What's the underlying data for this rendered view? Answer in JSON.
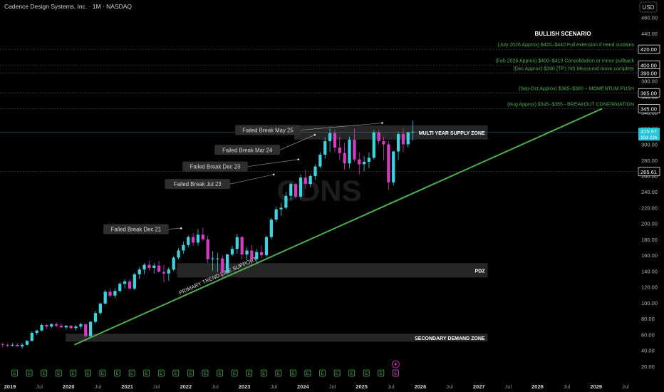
{
  "header": {
    "symbol_title": "Cadence Design Systems, Inc. · 1M · NASDAQ",
    "currency": "USD",
    "watermark": "CDNS"
  },
  "colors": {
    "background": "#000000",
    "up_candle": "#3ed3e0",
    "down_candle": "#d63bc2",
    "trendline": "#4caf50",
    "annotation_text": "#4caf50",
    "zone_fill": "#2a2a2a",
    "label_bg": "#2e2e2e",
    "level_line": "#5a5a5a",
    "current_price_bg": "#26c6da"
  },
  "chart_data": {
    "type": "candlestick",
    "y_axis": {
      "min": 0,
      "max": 475,
      "tick_labels": [
        "20.00",
        "40.00",
        "60.00",
        "80.00",
        "100.00",
        "120.00",
        "140.00",
        "160.00",
        "180.00",
        "200.00",
        "220.00",
        "240.00",
        "260.00",
        "280.00",
        "300.00",
        "320.00",
        "340.00",
        "360.00",
        "380.00",
        "400.00",
        "420.00",
        "440.00",
        "460.00"
      ],
      "tick_values": [
        20,
        40,
        60,
        80,
        100,
        120,
        140,
        160,
        180,
        200,
        220,
        240,
        260,
        280,
        300,
        320,
        340,
        360,
        380,
        400,
        420,
        440,
        460
      ]
    },
    "x_axis": {
      "start": "2018-11",
      "end": "2029-09",
      "ticks": [
        {
          "label": "2019",
          "t": 2019.0
        },
        {
          "label": "Jul",
          "t": 2019.5
        },
        {
          "label": "2020",
          "t": 2020.0
        },
        {
          "label": "Jul",
          "t": 2020.5
        },
        {
          "label": "2021",
          "t": 2021.0
        },
        {
          "label": "Jul",
          "t": 2021.5
        },
        {
          "label": "2022",
          "t": 2022.0
        },
        {
          "label": "Jul",
          "t": 2022.5
        },
        {
          "label": "2023",
          "t": 2023.0
        },
        {
          "label": "Jul",
          "t": 2023.5
        },
        {
          "label": "2024",
          "t": 2024.0
        },
        {
          "label": "Jul",
          "t": 2024.5
        },
        {
          "label": "2025",
          "t": 2025.0
        },
        {
          "label": "Jul",
          "t": 2025.5
        },
        {
          "label": "2026",
          "t": 2026.0
        },
        {
          "label": "Jul",
          "t": 2026.5
        },
        {
          "label": "2027",
          "t": 2027.0
        },
        {
          "label": "Jul",
          "t": 2027.5
        },
        {
          "label": "2028",
          "t": 2028.0
        },
        {
          "label": "Jul",
          "t": 2028.5
        },
        {
          "label": "2029",
          "t": 2029.0
        },
        {
          "label": "Jul",
          "t": 2029.5
        }
      ]
    },
    "candles": {
      "start_date": "2018-11",
      "ohlc": [
        [
          48,
          49,
          44,
          47
        ],
        [
          47,
          48,
          44,
          46
        ],
        [
          46,
          49,
          45,
          47
        ],
        [
          47,
          49,
          45,
          45
        ],
        [
          45,
          49,
          42,
          47
        ],
        [
          47,
          53,
          46,
          52
        ],
        [
          52,
          64,
          51,
          62
        ],
        [
          62,
          66,
          59,
          65
        ],
        [
          65,
          74,
          64,
          72
        ],
        [
          72,
          73,
          67,
          70
        ],
        [
          70,
          74,
          68,
          73
        ],
        [
          73,
          75,
          69,
          71
        ],
        [
          71,
          74,
          68,
          69
        ],
        [
          69,
          72,
          66,
          71
        ],
        [
          71,
          72,
          67,
          68
        ],
        [
          68,
          72,
          65,
          70
        ],
        [
          70,
          75,
          67,
          73
        ],
        [
          73,
          72,
          56,
          58
        ],
        [
          58,
          77,
          57,
          76
        ],
        [
          76,
          90,
          74,
          87
        ],
        [
          87,
          100,
          85,
          99
        ],
        [
          99,
          116,
          98,
          114
        ],
        [
          114,
          118,
          107,
          109
        ],
        [
          109,
          118,
          106,
          115
        ],
        [
          115,
          126,
          113,
          124
        ],
        [
          124,
          130,
          118,
          127
        ],
        [
          127,
          130,
          117,
          118
        ],
        [
          118,
          138,
          116,
          136
        ],
        [
          136,
          145,
          130,
          142
        ],
        [
          142,
          150,
          136,
          148
        ],
        [
          148,
          153,
          141,
          144
        ],
        [
          144,
          150,
          137,
          147
        ],
        [
          147,
          153,
          142,
          139
        ],
        [
          139,
          148,
          126,
          137
        ],
        [
          137,
          145,
          128,
          142
        ],
        [
          142,
          159,
          140,
          157
        ],
        [
          157,
          169,
          155,
          166
        ],
        [
          166,
          177,
          162,
          173
        ],
        [
          173,
          185,
          170,
          183
        ],
        [
          183,
          188,
          172,
          176
        ],
        [
          176,
          193,
          172,
          186
        ],
        [
          186,
          195,
          178,
          180
        ],
        [
          180,
          185,
          150,
          155
        ],
        [
          155,
          165,
          140,
          156
        ],
        [
          156,
          163,
          139,
          156
        ],
        [
          156,
          160,
          132,
          138
        ],
        [
          138,
          162,
          136,
          161
        ],
        [
          161,
          172,
          159,
          168
        ],
        [
          168,
          187,
          162,
          183
        ],
        [
          183,
          184,
          155,
          161
        ],
        [
          161,
          170,
          154,
          166
        ],
        [
          166,
          173,
          148,
          155
        ],
        [
          155,
          168,
          150,
          164
        ],
        [
          164,
          172,
          156,
          160
        ],
        [
          160,
          185,
          158,
          183
        ],
        [
          183,
          207,
          180,
          205
        ],
        [
          205,
          221,
          202,
          218
        ],
        [
          218,
          226,
          210,
          220
        ],
        [
          220,
          240,
          218,
          235
        ],
        [
          235,
          252,
          230,
          250
        ],
        [
          250,
          250,
          232,
          234
        ],
        [
          234,
          262,
          231,
          258
        ],
        [
          258,
          268,
          244,
          250
        ],
        [
          250,
          262,
          246,
          260
        ],
        [
          260,
          275,
          255,
          272
        ],
        [
          272,
          290,
          270,
          287
        ],
        [
          287,
          309,
          282,
          304
        ],
        [
          304,
          320,
          290,
          314
        ],
        [
          314,
          318,
          290,
          296
        ],
        [
          296,
          310,
          280,
          289
        ],
        [
          289,
          302,
          268,
          276
        ],
        [
          276,
          310,
          270,
          306
        ],
        [
          306,
          320,
          278,
          281
        ],
        [
          281,
          290,
          262,
          275
        ],
        [
          275,
          285,
          266,
          278
        ],
        [
          278,
          290,
          270,
          283
        ],
        [
          283,
          318,
          281,
          315
        ],
        [
          315,
          318,
          300,
          304
        ],
        [
          304,
          310,
          280,
          300
        ],
        [
          300,
          304,
          243,
          252
        ],
        [
          252,
          292,
          248,
          291
        ],
        [
          291,
          316,
          280,
          313
        ],
        [
          313,
          320,
          290,
          300
        ],
        [
          300,
          316,
          296,
          315
        ],
        [
          315,
          330,
          305,
          316
        ]
      ]
    },
    "current_price": {
      "value": "315.57",
      "label": "315.57",
      "countdown": "10d 23h"
    },
    "level_labels": [
      {
        "value": 420,
        "label": "420.00"
      },
      {
        "value": 400,
        "label": "400.00"
      },
      {
        "value": 390,
        "label": "390.00"
      },
      {
        "value": 365,
        "label": "365.00"
      },
      {
        "value": 345,
        "label": "345.00"
      },
      {
        "value": 265.61,
        "label": "265.61"
      }
    ],
    "zones": [
      {
        "name": "MULTI YEAR SUPPLY ZONE",
        "low": 306,
        "high": 324,
        "start": 2023.85,
        "end": 2027.15
      },
      {
        "name": "PDZ",
        "low": 132,
        "high": 150,
        "start": 2021.85,
        "end": 2027.15
      },
      {
        "name": "SECONDARY DEMAND ZONE",
        "low": 51,
        "high": 61,
        "start": 2019.95,
        "end": 2027.15
      }
    ],
    "trendline": {
      "name": "PRIMARY TREND LINE SUPPORT",
      "p1": {
        "t": 2020.1,
        "v": 47
      },
      "p2": {
        "t": 2029.1,
        "v": 345
      }
    },
    "scenario_title": "BULLISH SCENARIO",
    "scenario_annotations": [
      {
        "text": "(July 2026 Approx) $420–$440 Full extension if trend sustains",
        "value": 420
      },
      {
        "text": "(Feb 2026 Approx) $400–$410 Consolidation or minor pullback",
        "value": 400
      },
      {
        "text": "(Dec Approx) $390 (TP1 hit) Measured move complete",
        "value": 390
      },
      {
        "text": "(Sep-Oct Approx) $365–$380 – MOMENTUM PUSH",
        "value": 365
      },
      {
        "text": "(Aug Approx) $345–$355 - BREAKOUT CONFIRMATION",
        "value": 345
      }
    ],
    "failed_breaks": [
      {
        "label": "Failed Break Dec 21",
        "label_t": 2021.15,
        "label_v": 193,
        "point_t": 2021.92,
        "point_v": 194
      },
      {
        "label": "Failed Break Jul 23",
        "label_t": 2022.2,
        "label_v": 250,
        "point_t": 2023.5,
        "point_v": 262
      },
      {
        "label": "Failed Break Dec 23",
        "label_t": 2022.5,
        "label_v": 272,
        "point_t": 2023.92,
        "point_v": 281
      },
      {
        "label": "Failed Break Mar 24",
        "label_t": 2023.05,
        "label_v": 293,
        "point_t": 2024.2,
        "point_v": 312
      },
      {
        "label": "Failed Break May 25",
        "label_t": 2023.4,
        "label_v": 318,
        "point_t": 2025.35,
        "point_v": 327
      }
    ],
    "earnings_marker": "E",
    "earnings_months": [
      2019.08,
      2019.33,
      2019.58,
      2019.83,
      2020.08,
      2020.33,
      2020.58,
      2020.83,
      2021.08,
      2021.33,
      2021.58,
      2021.83,
      2022.08,
      2022.33,
      2022.58,
      2022.83,
      2023.08,
      2023.33,
      2023.58,
      2023.83,
      2024.08,
      2024.33,
      2024.58,
      2024.83,
      2025.08,
      2025.33,
      2025.58
    ],
    "upcoming_earnings": {
      "t": 2025.58,
      "marker": "E",
      "icon": "lightning-icon"
    }
  }
}
